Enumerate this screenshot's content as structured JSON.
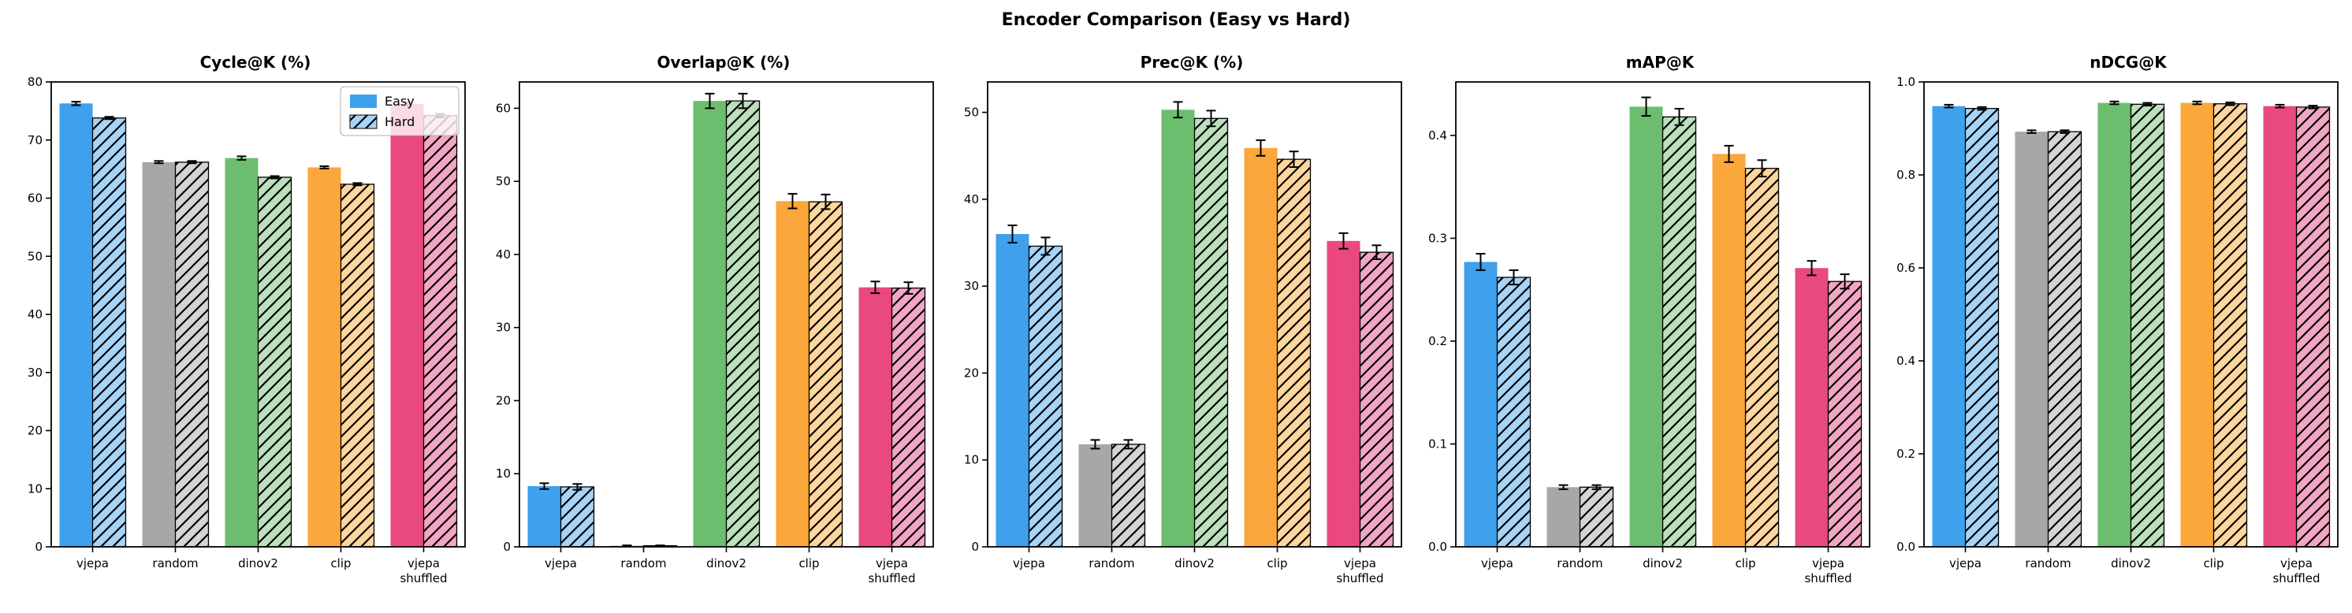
{
  "figure_title": "Encoder Comparison (Easy vs Hard)",
  "legend": {
    "easy_label": "Easy",
    "hard_label": "Hard",
    "position": "upper right"
  },
  "categories": [
    "vjepa",
    "random",
    "dinov2",
    "clip",
    "vjepa shuffled"
  ],
  "colors": {
    "easy": [
      "#3fa0ec",
      "#a7a7a7",
      "#6cbe6e",
      "#fba73b",
      "#e9497e"
    ],
    "hard": [
      "#a6d4f7",
      "#d4d4d4",
      "#bcdfbc",
      "#fcd69e",
      "#f2a6c4"
    ],
    "error_bar": "#000000",
    "spine": "#000000",
    "hatch": "#000000",
    "legend_border": "#b0b0b0"
  },
  "hatch_pattern": "/",
  "chart_data": [
    {
      "type": "bar",
      "title": "Cycle@K (%)",
      "xlabel": "",
      "ylabel": "",
      "ylim": [
        0,
        80
      ],
      "yticks": [
        0,
        10,
        20,
        30,
        40,
        50,
        60,
        70,
        80
      ],
      "ytick_decimals": 0,
      "grid": false,
      "legend": true,
      "categories": [
        "vjepa",
        "random",
        "dinov2",
        "clip",
        "vjepa shuffled"
      ],
      "series": [
        {
          "name": "Easy",
          "values": [
            76.3,
            66.2,
            66.9,
            65.3,
            76.2
          ],
          "errors": [
            0.3,
            0.2,
            0.3,
            0.2,
            0.3
          ]
        },
        {
          "name": "Hard",
          "values": [
            73.8,
            66.2,
            63.6,
            62.4,
            74.2
          ],
          "errors": [
            0.2,
            0.2,
            0.2,
            0.2,
            0.3
          ]
        }
      ]
    },
    {
      "type": "bar",
      "title": "Overlap@K (%)",
      "xlabel": "",
      "ylabel": "",
      "ylim": [
        0,
        63.6
      ],
      "yticks": [
        0,
        10,
        20,
        30,
        40,
        50,
        60
      ],
      "ytick_decimals": 0,
      "grid": false,
      "legend": false,
      "categories": [
        "vjepa",
        "random",
        "dinov2",
        "clip",
        "vjepa shuffled"
      ],
      "series": [
        {
          "name": "Easy",
          "values": [
            8.3,
            0.15,
            61.0,
            47.3,
            35.5
          ],
          "errors": [
            0.4,
            0.05,
            1.0,
            1.0,
            0.8
          ]
        },
        {
          "name": "Hard",
          "values": [
            8.2,
            0.15,
            61.0,
            47.2,
            35.4
          ],
          "errors": [
            0.4,
            0.05,
            1.0,
            1.0,
            0.8
          ]
        }
      ]
    },
    {
      "type": "bar",
      "title": "Prec@K (%)",
      "xlabel": "",
      "ylabel": "",
      "ylim": [
        0,
        53.5
      ],
      "yticks": [
        0,
        10,
        20,
        30,
        40,
        50
      ],
      "ytick_decimals": 0,
      "grid": false,
      "legend": false,
      "categories": [
        "vjepa",
        "random",
        "dinov2",
        "clip",
        "vjepa shuffled"
      ],
      "series": [
        {
          "name": "Easy",
          "values": [
            36.0,
            11.8,
            50.3,
            45.9,
            35.2
          ],
          "errors": [
            1.0,
            0.5,
            0.9,
            0.9,
            0.9
          ]
        },
        {
          "name": "Hard",
          "values": [
            34.6,
            11.8,
            49.3,
            44.6,
            33.9
          ],
          "errors": [
            1.0,
            0.5,
            0.9,
            0.9,
            0.8
          ]
        }
      ]
    },
    {
      "type": "bar",
      "title": "mAP@K",
      "xlabel": "",
      "ylabel": "",
      "ylim": [
        0,
        0.452
      ],
      "yticks": [
        0,
        0.1,
        0.2,
        0.3,
        0.4
      ],
      "ytick_decimals": 1,
      "grid": false,
      "legend": false,
      "categories": [
        "vjepa",
        "random",
        "dinov2",
        "clip",
        "vjepa shuffled"
      ],
      "series": [
        {
          "name": "Easy",
          "values": [
            0.277,
            0.058,
            0.428,
            0.382,
            0.271
          ],
          "errors": [
            0.008,
            0.002,
            0.009,
            0.008,
            0.007
          ]
        },
        {
          "name": "Hard",
          "values": [
            0.262,
            0.058,
            0.418,
            0.368,
            0.258
          ],
          "errors": [
            0.007,
            0.002,
            0.008,
            0.008,
            0.007
          ]
        }
      ]
    },
    {
      "type": "bar",
      "title": "nDCG@K",
      "xlabel": "",
      "ylabel": "",
      "ylim": [
        0,
        1.0
      ],
      "yticks": [
        0,
        0.2,
        0.4,
        0.6,
        0.8,
        1.0
      ],
      "ytick_decimals": 1,
      "grid": false,
      "legend": false,
      "categories": [
        "vjepa",
        "random",
        "dinov2",
        "clip",
        "vjepa shuffled"
      ],
      "series": [
        {
          "name": "Easy",
          "values": [
            0.948,
            0.893,
            0.955,
            0.955,
            0.948
          ],
          "errors": [
            0.003,
            0.003,
            0.003,
            0.003,
            0.003
          ]
        },
        {
          "name": "Hard",
          "values": [
            0.943,
            0.893,
            0.952,
            0.953,
            0.946
          ],
          "errors": [
            0.003,
            0.003,
            0.003,
            0.003,
            0.003
          ]
        }
      ]
    }
  ]
}
